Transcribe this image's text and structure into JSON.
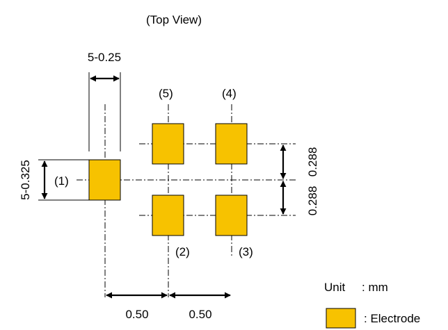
{
  "diagram": {
    "view_title": "(Top View)",
    "pad_labels": {
      "pad1": "(1)",
      "pad2": "(2)",
      "pad3": "(3)",
      "pad4": "(4)",
      "pad5": "(5)"
    },
    "dimensions": {
      "pad_width": "5-0.25",
      "pad_height": "5-0.325",
      "pitch_x_left": "0.50",
      "pitch_x_right": "0.50",
      "pitch_y_top": "0.288",
      "pitch_y_bottom": "0.288"
    },
    "legend": {
      "unit_label": "Unit",
      "unit_value": ": mm",
      "electrode_label": ": Electrode"
    },
    "colors": {
      "electrode": "#F7C200",
      "line": "#000000"
    }
  }
}
